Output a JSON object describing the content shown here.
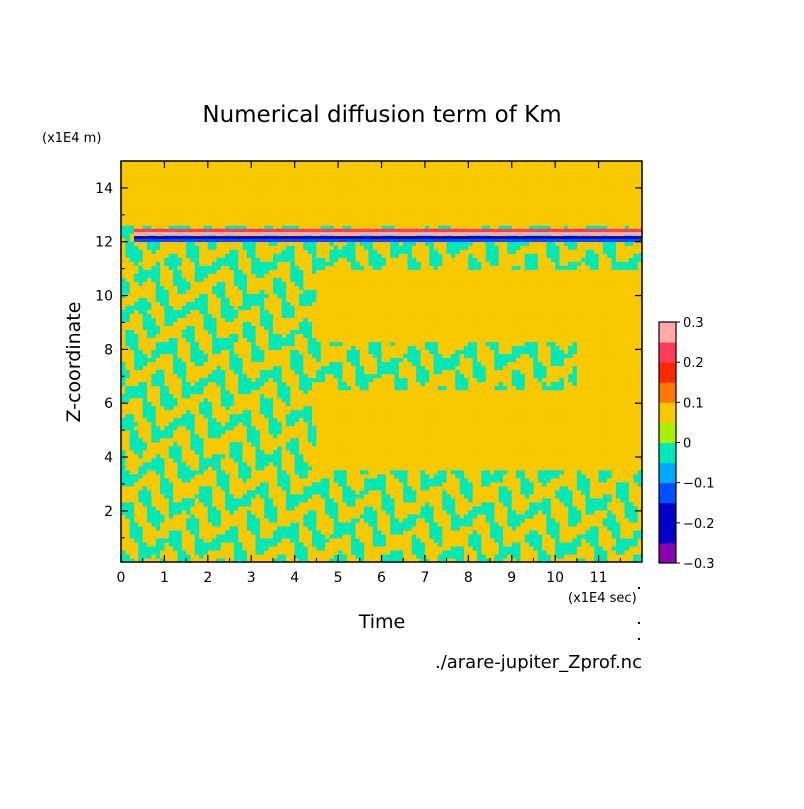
{
  "chart_data": {
    "type": "heatmap",
    "title": "Numerical diffusion term of Km",
    "xlabel": "Time",
    "ylabel": "Z-coordinate",
    "x_unit": "(x1E4 sec)",
    "y_unit": "(x1E4 m)",
    "file_label": "./arare-jupiter_Zprof.nc",
    "xlim": [
      0,
      12
    ],
    "ylim": [
      0.1,
      15
    ],
    "x_ticks": [
      "0",
      "1",
      "2",
      "3",
      "4",
      "5",
      "6",
      "7",
      "8",
      "9",
      "10",
      "11"
    ],
    "x_tick_values": [
      0,
      1,
      2,
      3,
      4,
      5,
      6,
      7,
      8,
      9,
      10,
      11
    ],
    "y_ticks": [
      "2",
      "4",
      "6",
      "8",
      "10",
      "12",
      "14"
    ],
    "y_tick_values": [
      2,
      4,
      6,
      8,
      10,
      12,
      14
    ],
    "colorbar": {
      "levels": [
        -0.3,
        -0.25,
        -0.2,
        -0.15,
        -0.1,
        -0.05,
        0,
        0.05,
        0.1,
        0.15,
        0.2,
        0.25,
        0.3
      ],
      "labels": [
        "0.3",
        "0.2",
        "0.1",
        "0",
        "−0.1",
        "−0.2",
        "−0.3"
      ],
      "label_values": [
        0.3,
        0.2,
        0.1,
        0,
        -0.1,
        -0.2,
        -0.3
      ],
      "colors": [
        "#8b00b0",
        "#0000c8",
        "#0050ff",
        "#00a8ff",
        "#00e8b8",
        "#a8f000",
        "#f8c800",
        "#ff7800",
        "#ff2800",
        "#ff3c5a",
        "#ffaaaa"
      ]
    },
    "background_value": 0.02,
    "features": [
      {
        "kind": "dipole_band",
        "z": 12.2,
        "t_start": 0.3,
        "t_end": 12,
        "value_low": -0.3,
        "value_high": 0.3
      },
      {
        "kind": "quiet_region",
        "z_range": [
          13.5,
          15
        ],
        "t_range": [
          0,
          12
        ],
        "value": 0.02
      },
      {
        "kind": "noise_region",
        "z_range": [
          0.1,
          12
        ],
        "t_range": [
          0,
          4.5
        ],
        "amplitude": -0.07
      },
      {
        "kind": "noise_band",
        "z_range": [
          11,
          12.6
        ],
        "t_range": [
          0,
          12
        ],
        "amplitude": -0.07
      },
      {
        "kind": "noise_band",
        "z_range": [
          6.5,
          8.3
        ],
        "t_range": [
          4.5,
          10.5
        ],
        "amplitude": -0.07
      },
      {
        "kind": "noise_band",
        "z_range": [
          0.1,
          3.5
        ],
        "t_range": [
          4.5,
          12
        ],
        "amplitude": -0.07
      }
    ]
  },
  "colors": {
    "background": "#ffffff",
    "axes": "#000000"
  }
}
